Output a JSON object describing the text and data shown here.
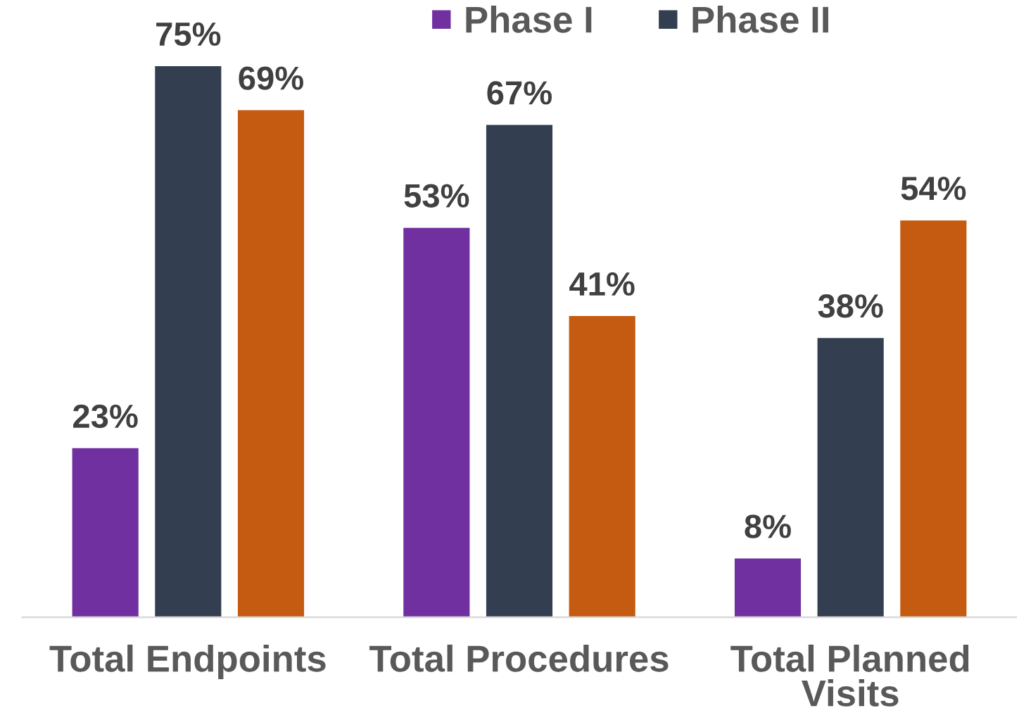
{
  "chart_data": {
    "type": "bar",
    "categories": [
      "Total Endpoints",
      "Total Procedures",
      "Total Planned\nVisits"
    ],
    "series": [
      {
        "name": "Phase I",
        "color": "#7030a0",
        "values": [
          23,
          53,
          8
        ],
        "value_labels": [
          "23%",
          "53%",
          "8%"
        ]
      },
      {
        "name": "Phase II",
        "color": "#333f50",
        "values": [
          75,
          67,
          38
        ],
        "value_labels": [
          "75%",
          "67%",
          "38%"
        ]
      },
      {
        "color": "#c55a11",
        "values": [
          69,
          41,
          54
        ],
        "value_labels": [
          "69%",
          "41%",
          "54%"
        ]
      }
    ],
    "legend": "top"
  }
}
